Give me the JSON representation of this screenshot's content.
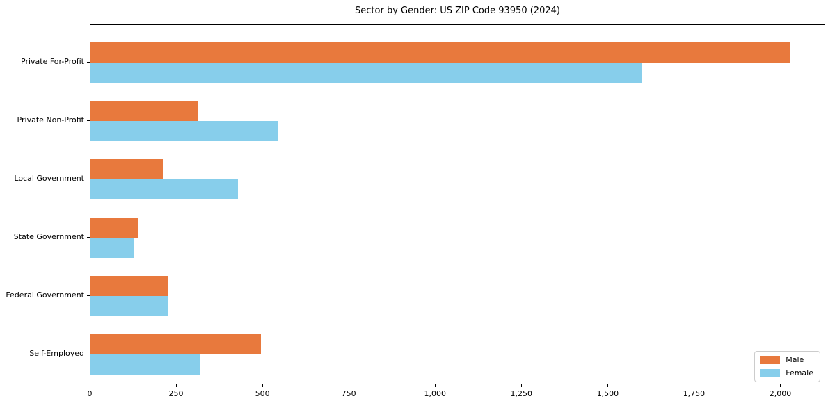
{
  "title": "Sector by Gender: US ZIP Code 93950 (2024)",
  "chart_data": {
    "type": "bar",
    "orientation": "horizontal",
    "title": "Sector by Gender: US ZIP Code 93950 (2024)",
    "categories": [
      "Private For-Profit",
      "Private Non-Profit",
      "Local Government",
      "State Government",
      "Federal Government",
      "Self-Employed"
    ],
    "series": [
      {
        "name": "Male",
        "color": "#e8793d",
        "values": [
          2030,
          310,
          210,
          140,
          224,
          495
        ]
      },
      {
        "name": "Female",
        "color": "#87ceeb",
        "values": [
          1600,
          545,
          428,
          125,
          226,
          318
        ]
      }
    ],
    "xlabel": "",
    "ylabel": "",
    "xlim": [
      0,
      2130
    ],
    "xticks": [
      0,
      250,
      500,
      750,
      1000,
      1250,
      1500,
      1750,
      2000
    ],
    "xtick_labels": [
      "0",
      "250",
      "500",
      "750",
      "1,000",
      "1,250",
      "1,500",
      "1,750",
      "2,000"
    ],
    "grid": false,
    "legend_position": "lower right",
    "colors": {
      "male": "#e8793d",
      "female": "#87ceeb",
      "spine": "#000000",
      "legend_border": "#cccccc",
      "background": "#ffffff"
    }
  }
}
